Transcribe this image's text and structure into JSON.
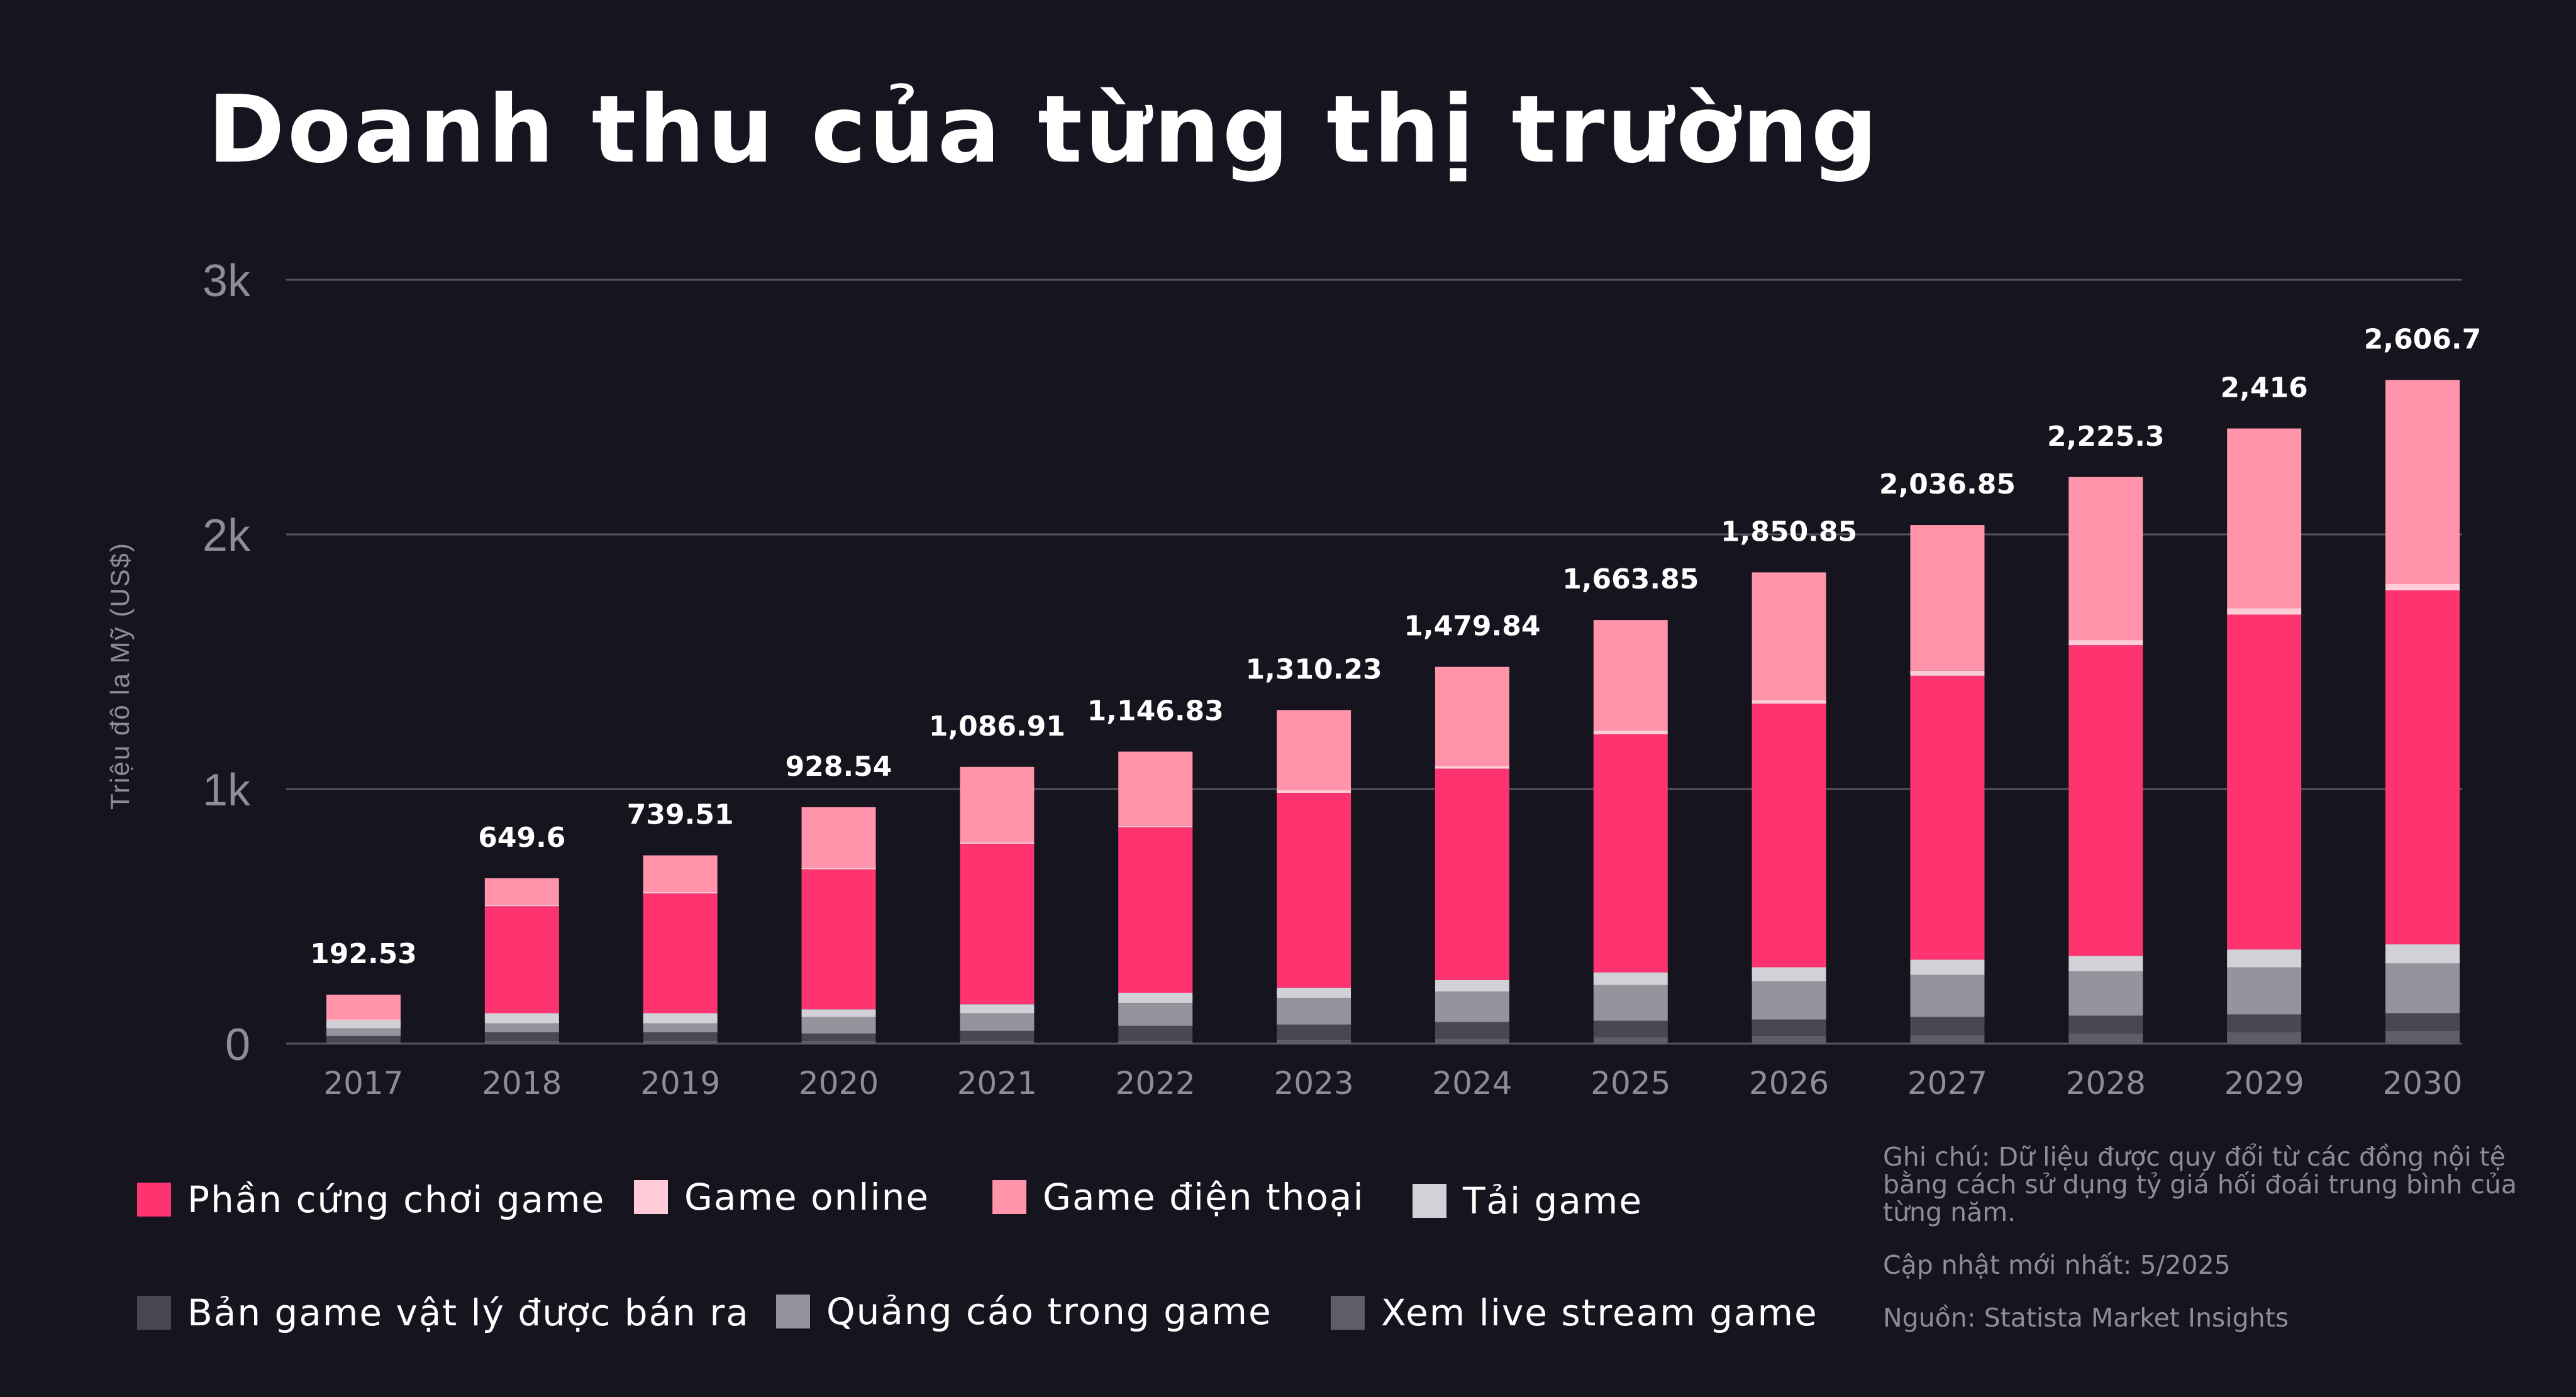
{
  "title": "Doanh thu của từng thị trường",
  "colors": {
    "hardware": "#ff3370",
    "online": "#ffccd7",
    "mobile": "#ff94aa",
    "download": "#d2d1d7",
    "physical": "#4a4652",
    "ads": "#95939c",
    "livestream": "#605d6a"
  },
  "legend": [
    {
      "label": "Phần cứng chơi game",
      "color_key": "hardware"
    },
    {
      "label": "Game online",
      "color_key": "online"
    },
    {
      "label": "Game điện thoại",
      "color_key": "mobile"
    },
    {
      "label": "Tải game",
      "color_key": "download"
    },
    {
      "label": "Bản game vật lý được bán ra",
      "color_key": "physical"
    },
    {
      "label": "Quảng cáo trong game",
      "color_key": "ads"
    },
    {
      "label": "Xem live stream game",
      "color_key": "livestream"
    }
  ],
  "notes": {
    "note": "Ghi chú: Dữ liệu được quy đổi từ các đồng nội tệ bằng cách sử dụng tỷ giá hối đoái trung bình của từng năm.",
    "updated": "Cập nhật mới nhất: 5/2025",
    "source": "Nguồn: Statista Market Insights"
  },
  "chart_data": {
    "type": "bar",
    "stacked": true,
    "ylabel": "Triệu đô la Mỹ (US$)",
    "xlabel": "",
    "ylim": [
      0,
      3000
    ],
    "yticks": [
      0,
      1000,
      2000,
      3000
    ],
    "ytick_labels": [
      "0",
      "1k",
      "2k",
      "3k"
    ],
    "grid": true,
    "categories": [
      "2017",
      "2018",
      "2019",
      "2020",
      "2021",
      "2022",
      "2023",
      "2024",
      "2025",
      "2026",
      "2027",
      "2028",
      "2029",
      "2030"
    ],
    "totals_labels": [
      "192.53",
      "649.6",
      "739.51",
      "928.54",
      "1,086.91",
      "1,146.83",
      "1,310.23",
      "1,479.84",
      "1,663.85",
      "1,850.85",
      "2,036.85",
      "2,225.3",
      "2,416",
      "2,606.7"
    ],
    "series": [
      {
        "name": "Xem live stream game",
        "color_key": "livestream",
        "values": [
          5,
          10,
          10,
          10,
          10,
          10,
          15,
          20,
          25,
          30,
          35,
          40,
          45,
          50
        ]
      },
      {
        "name": "Bản game vật lý được bán ra",
        "color_key": "physical",
        "values": [
          25,
          35,
          35,
          30,
          40,
          60,
          60,
          65,
          65,
          65,
          70,
          70,
          70,
          70
        ]
      },
      {
        "name": "Quảng cáo trong game",
        "color_key": "ads",
        "values": [
          30,
          35,
          35,
          65,
          70,
          90,
          105,
          120,
          140,
          150,
          165,
          175,
          185,
          195
        ]
      },
      {
        "name": "Tải game",
        "color_key": "download",
        "values": [
          30,
          40,
          40,
          30,
          35,
          40,
          40,
          45,
          50,
          55,
          60,
          60,
          70,
          75
        ]
      },
      {
        "name": "Phần cứng chơi game",
        "color_key": "hardware",
        "values": [
          0,
          420,
          470,
          550,
          630,
          650,
          765,
          830,
          935,
          1035,
          1115,
          1220,
          1315,
          1390
        ]
      },
      {
        "name": "Game online",
        "color_key": "online",
        "values": [
          5,
          5,
          5,
          5,
          5,
          5,
          10,
          10,
          15,
          15,
          20,
          20,
          25,
          25
        ]
      },
      {
        "name": "Game điện thoại",
        "color_key": "mobile",
        "values": [
          97.53,
          104.6,
          144.51,
          238.54,
          296.91,
          291.83,
          315.23,
          389.84,
          433.85,
          500.85,
          571.85,
          640.3,
          706,
          801.7
        ]
      }
    ]
  }
}
